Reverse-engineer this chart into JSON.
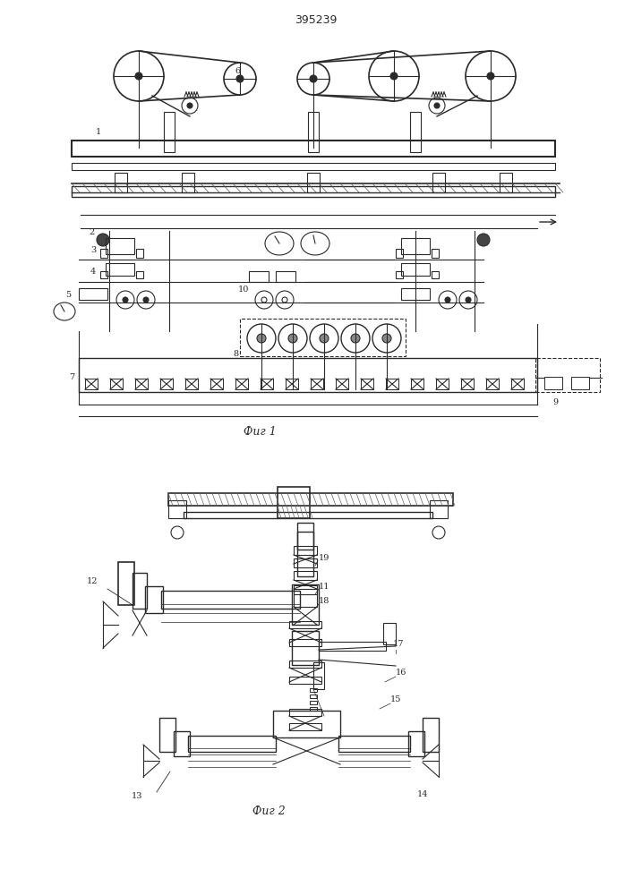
{
  "title": "395239",
  "fig1_caption": "Фиг 1",
  "fig2_caption": "Фиг 2",
  "bg_color": "#ffffff",
  "line_color": "#2a2a2a",
  "fig_width": 7.07,
  "fig_height": 10.0,
  "dpi": 100
}
